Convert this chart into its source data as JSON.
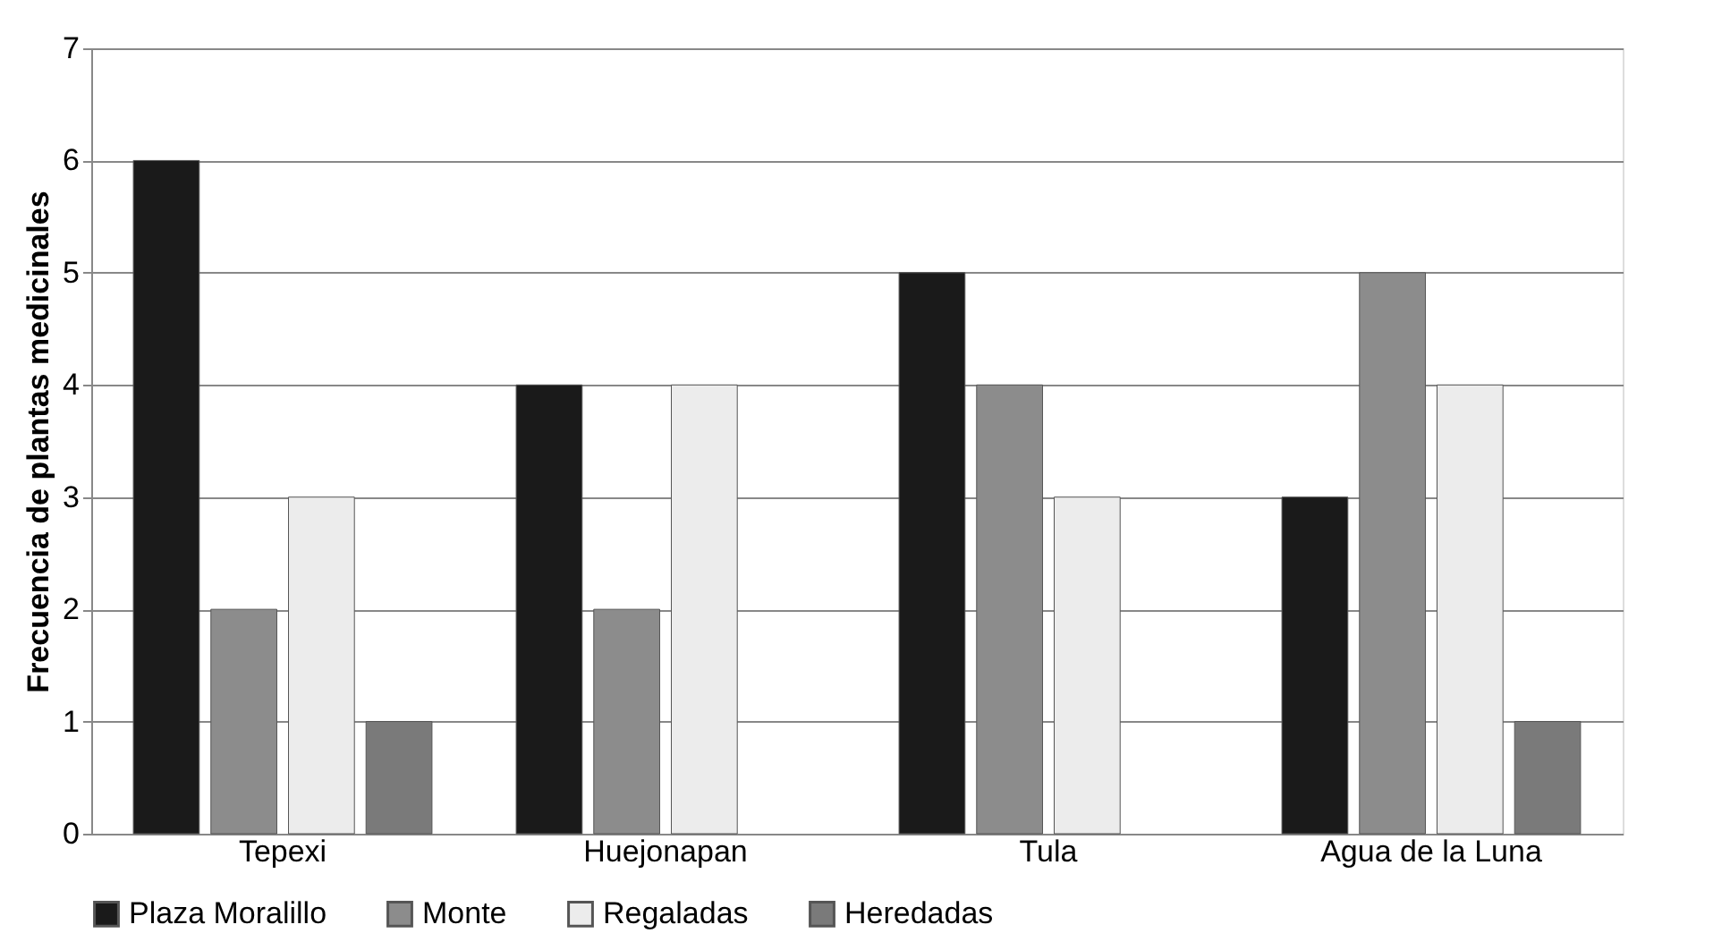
{
  "chart_data": {
    "type": "bar",
    "ylabel": "Frecuencia de plantas medicinales",
    "categories": [
      "Tepexi",
      "Huejonapan",
      "Tula",
      "Agua de la Luna"
    ],
    "series": [
      {
        "name": "Plaza Moralillo",
        "color": "#1a1a1a",
        "values": [
          6,
          4,
          5,
          3
        ]
      },
      {
        "name": "Monte",
        "color": "#8c8c8c",
        "values": [
          2,
          2,
          4,
          5
        ]
      },
      {
        "name": "Regaladas",
        "color": "#ececec",
        "values": [
          3,
          4,
          3,
          4
        ]
      },
      {
        "name": "Heredadas",
        "color": "#7a7a7a",
        "values": [
          1,
          null,
          null,
          1
        ]
      }
    ],
    "ylim": [
      0,
      7
    ],
    "yticks": [
      0,
      1,
      2,
      3,
      4,
      5,
      6,
      7
    ],
    "grid": "y",
    "legend": "bottom"
  }
}
